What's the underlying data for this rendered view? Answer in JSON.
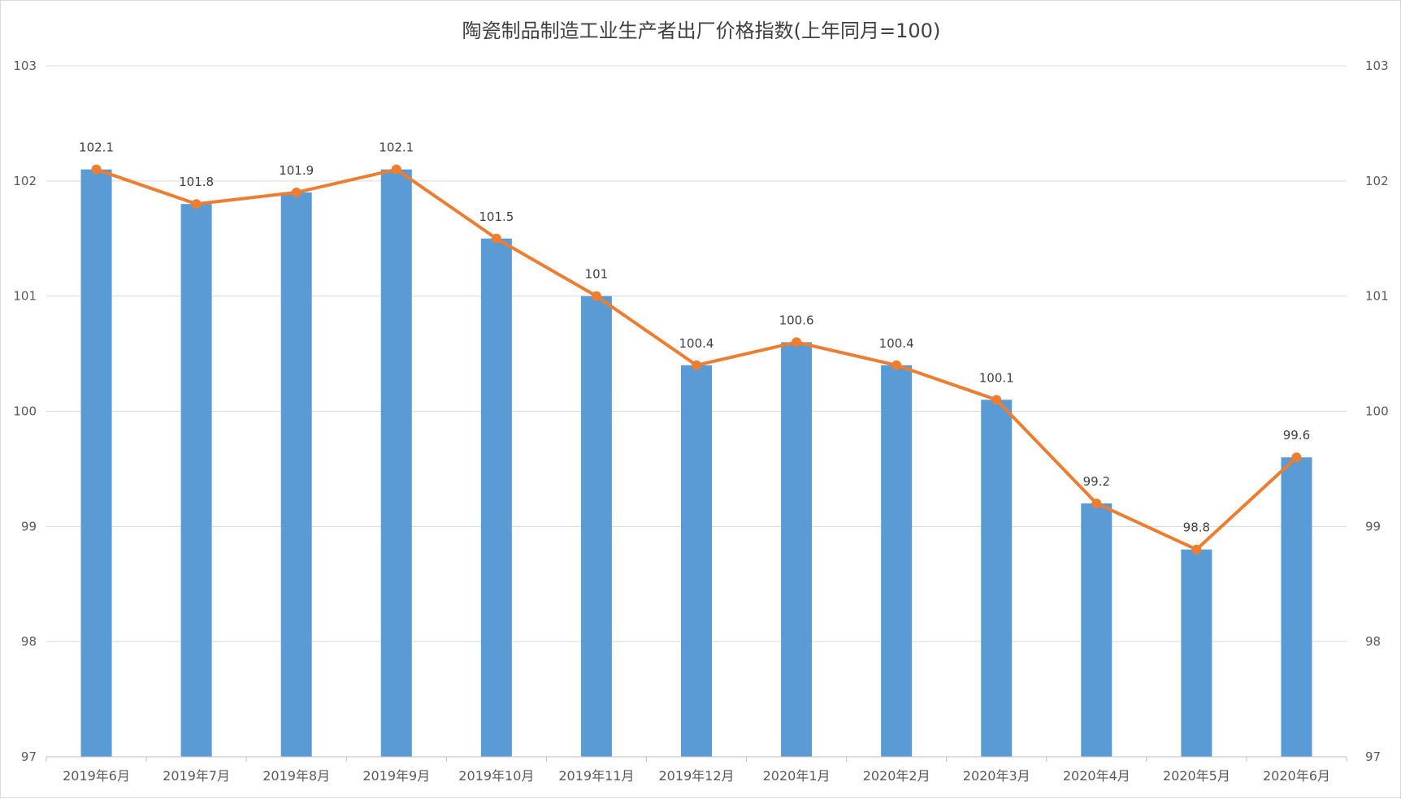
{
  "chart_data": {
    "type": "bar",
    "title": "陶瓷制品制造工业生产者出厂价格指数(上年同月=100)",
    "categories": [
      "2019年6月",
      "2019年7月",
      "2019年8月",
      "2019年9月",
      "2019年10月",
      "2019年11月",
      "2019年12月",
      "2020年1月",
      "2020年2月",
      "2020年3月",
      "2020年4月",
      "2020年5月",
      "2020年6月"
    ],
    "series": [
      {
        "type": "bar",
        "values": [
          102.1,
          101.8,
          101.9,
          102.1,
          101.5,
          101,
          100.4,
          100.6,
          100.4,
          100.1,
          99.2,
          98.8,
          99.6
        ],
        "color": "#5b9bd5"
      },
      {
        "type": "line",
        "values": [
          102.1,
          101.8,
          101.9,
          102.1,
          101.5,
          101,
          100.4,
          100.6,
          100.4,
          100.1,
          99.2,
          98.8,
          99.6
        ],
        "color": "#ed7d31"
      }
    ],
    "data_labels": [
      "102.1",
      "101.8",
      "101.9",
      "102.1",
      "101.5",
      "101",
      "100.4",
      "100.6",
      "100.4",
      "100.1",
      "99.2",
      "98.8",
      "99.6"
    ],
    "ylim": [
      97,
      103
    ],
    "yticks": [
      "97",
      "98",
      "99",
      "100",
      "101",
      "102",
      "103"
    ],
    "secondary_yticks": [
      "97",
      "98",
      "99",
      "100",
      "101",
      "102",
      "103"
    ],
    "grid": true,
    "legend": "none",
    "xlabel": "",
    "ylabel": ""
  }
}
